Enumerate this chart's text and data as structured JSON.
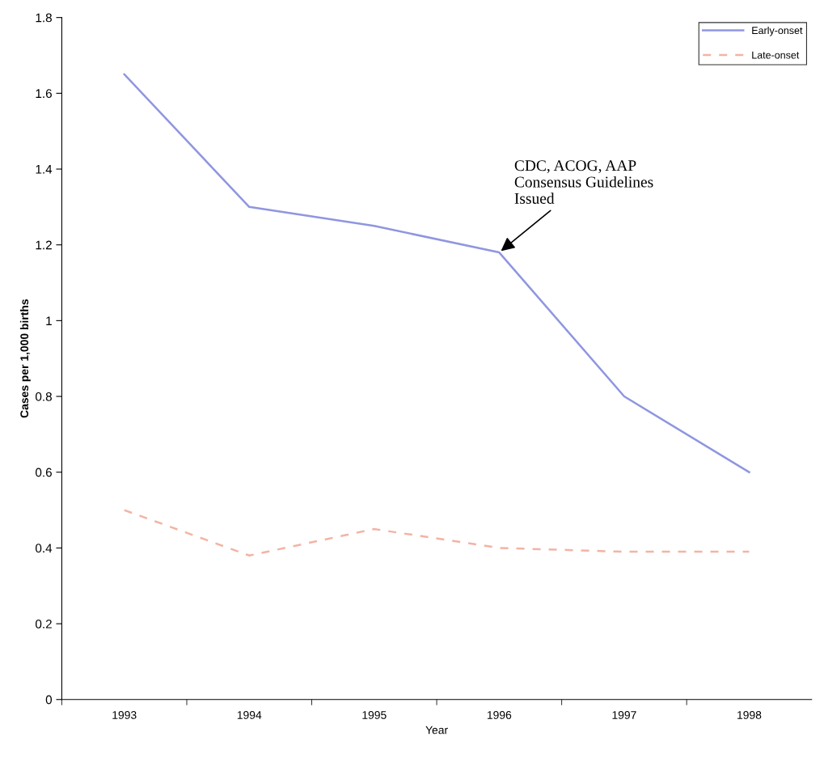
{
  "chart_data": {
    "type": "line",
    "xlabel": "Year",
    "ylabel": "Cases per 1,000 births",
    "categories": [
      "1993",
      "1994",
      "1995",
      "1996",
      "1997",
      "1998"
    ],
    "series": [
      {
        "name": "Early-onset",
        "color": "#8f96e0",
        "line_style": "solid",
        "values": [
          1.65,
          1.3,
          1.25,
          1.18,
          0.8,
          0.6
        ]
      },
      {
        "name": "Late-onset",
        "color": "#f2b4a4",
        "line_style": "dashed",
        "values": [
          0.5,
          0.38,
          0.45,
          0.4,
          0.39,
          0.39
        ]
      }
    ],
    "ylim": [
      0,
      1.8
    ],
    "yticks": [
      0,
      0.2,
      0.4,
      0.6,
      0.8,
      1,
      1.2,
      1.4,
      1.6,
      1.8
    ],
    "grid": false,
    "legend": "top right",
    "marker": "none",
    "annotations": [
      {
        "text": "CDC, ACOG, AAP\nConsensus Guidelines\nIssued",
        "x": "1996",
        "y": 1.18
      }
    ]
  }
}
